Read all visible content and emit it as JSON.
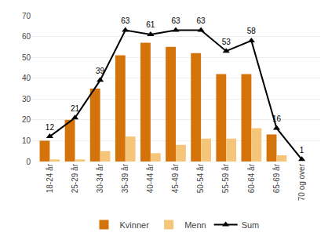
{
  "chart_data": {
    "type": "bar",
    "categories": [
      "18-24 år",
      "25-29 år",
      "30-34 år",
      "35-39 år",
      "40-44 år",
      "45-49 år",
      "50-54 år",
      "55-59 år",
      "60-64 år",
      "65-69 år",
      "70 og over"
    ],
    "series": [
      {
        "name": "Kvinner",
        "type": "bar",
        "color": "#D4730A",
        "values": [
          10,
          20,
          35,
          51,
          57,
          55,
          52,
          42,
          42,
          13,
          0
        ]
      },
      {
        "name": "Menn",
        "type": "bar",
        "color": "#F5C57A",
        "values": [
          1,
          1,
          5,
          12,
          4,
          8,
          11,
          11,
          16,
          3,
          0
        ]
      },
      {
        "name": "Sum",
        "type": "line",
        "color": "#000000",
        "marker": "triangle-up",
        "line_style": "solid",
        "data_labels": true,
        "values": [
          12,
          21,
          39,
          63,
          61,
          63,
          63,
          53,
          58,
          16,
          1
        ]
      }
    ],
    "ylim": [
      0,
      70
    ],
    "yticks": [
      0,
      10,
      20,
      30,
      40,
      50,
      60,
      70
    ],
    "grid": true,
    "legend": "bottom"
  }
}
